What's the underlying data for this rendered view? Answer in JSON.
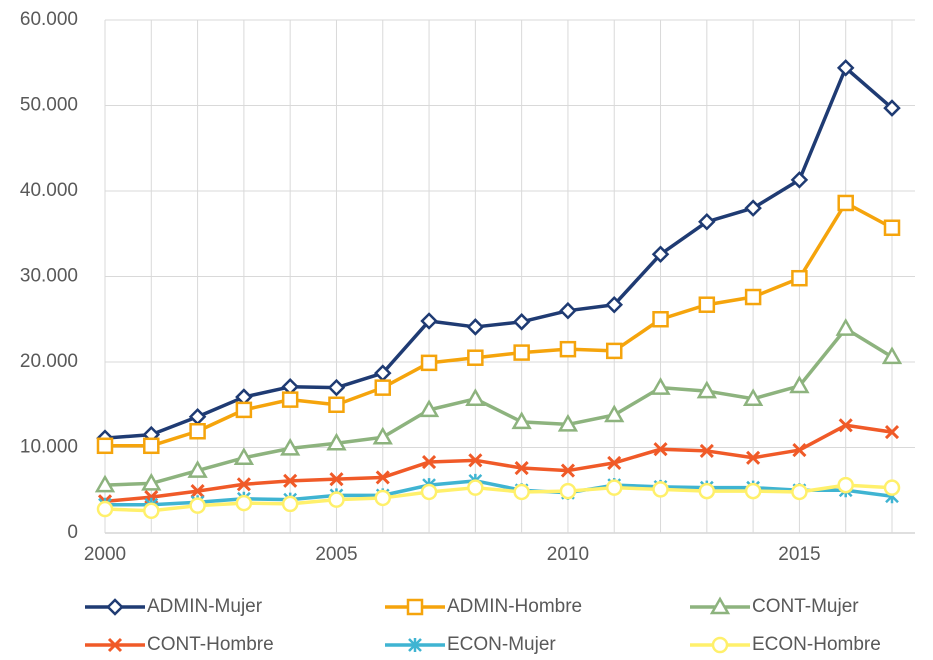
{
  "chart_data": {
    "type": "line",
    "x": [
      2000,
      2001,
      2002,
      2003,
      2004,
      2005,
      2006,
      2007,
      2008,
      2009,
      2010,
      2011,
      2012,
      2013,
      2014,
      2015,
      2016,
      2017
    ],
    "xlim": [
      2000,
      2017
    ],
    "xticks": [
      2000,
      2005,
      2010,
      2015
    ],
    "ylim": [
      0,
      60000
    ],
    "yticks": [
      0,
      {
        "value": 10000,
        "label": "10.000"
      },
      {
        "value": 20000,
        "label": "20.000"
      },
      {
        "value": 30000,
        "label": "30.000"
      },
      {
        "value": 40000,
        "label": "40.000"
      },
      {
        "value": 50000,
        "label": "50.000"
      },
      {
        "value": 60000,
        "label": "60.000"
      }
    ],
    "grid": true,
    "legend": "bottom",
    "series": [
      {
        "name": "ADMIN-Mujer",
        "color": "#1f3b73",
        "marker": "diamond",
        "values": [
          11100,
          11500,
          13600,
          15900,
          17100,
          17000,
          18700,
          24800,
          24100,
          24700,
          26000,
          26700,
          32600,
          36400,
          38000,
          41300,
          54400,
          49700
        ]
      },
      {
        "name": "ADMIN-Hombre",
        "color": "#f5a40c",
        "marker": "square",
        "values": [
          10200,
          10200,
          11900,
          14400,
          15600,
          15000,
          17000,
          19900,
          20500,
          21100,
          21500,
          21300,
          25000,
          26700,
          27600,
          29800,
          38600,
          35700
        ]
      },
      {
        "name": "CONT-Mujer",
        "color": "#8db37e",
        "marker": "triangle",
        "values": [
          5600,
          5800,
          7300,
          8800,
          9900,
          10500,
          11200,
          14400,
          15700,
          13000,
          12700,
          13800,
          17000,
          16600,
          15700,
          17200,
          23900,
          20600
        ]
      },
      {
        "name": "CONT-Hombre",
        "color": "#f05a28",
        "marker": "x",
        "values": [
          3700,
          4200,
          4900,
          5700,
          6100,
          6300,
          6500,
          8300,
          8500,
          7600,
          7300,
          8200,
          9800,
          9600,
          8800,
          9700,
          12600,
          11800
        ]
      },
      {
        "name": "ECON-Mujer",
        "color": "#3fb4d2",
        "marker": "asterisk",
        "values": [
          3300,
          3300,
          3600,
          4000,
          3900,
          4400,
          4400,
          5600,
          6100,
          5000,
          4700,
          5600,
          5400,
          5300,
          5300,
          5000,
          5000,
          4300
        ]
      },
      {
        "name": "ECON-Hombre",
        "color": "#fff06b",
        "marker": "circle",
        "values": [
          2800,
          2600,
          3200,
          3500,
          3400,
          3900,
          4100,
          4800,
          5300,
          4800,
          4900,
          5300,
          5100,
          4900,
          4900,
          4800,
          5600,
          5300
        ]
      }
    ]
  }
}
